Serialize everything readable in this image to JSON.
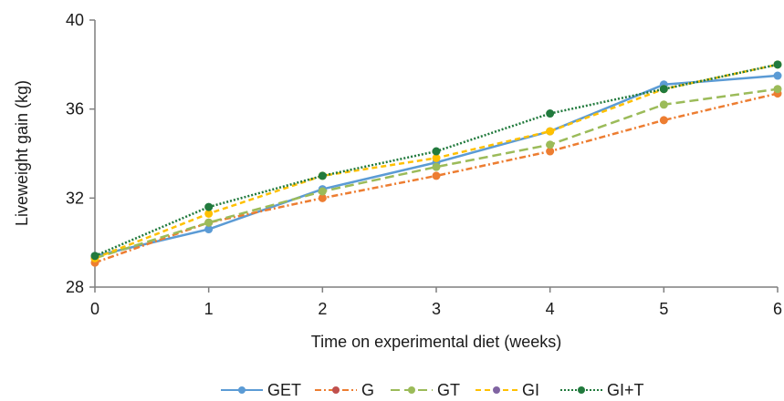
{
  "chart_data": {
    "type": "line",
    "xlabel": "Time on experimental diet (weeks)",
    "ylabel": "Liveweight gain (kg)",
    "x": [
      0,
      1,
      2,
      3,
      4,
      5,
      6
    ],
    "xlim": [
      0,
      6
    ],
    "ylim": [
      28,
      40
    ],
    "yticks": [
      28,
      32,
      36,
      40
    ],
    "grid": false,
    "legend_position": "bottom",
    "series": [
      {
        "name": "GET",
        "color": "#5b9bd5",
        "dash": "solid",
        "values": [
          29.4,
          30.6,
          32.4,
          33.6,
          35.0,
          37.1,
          37.5
        ]
      },
      {
        "name": "G",
        "color": "#ed7d31",
        "dash": "dash-dot",
        "marker_color": "#c0504d",
        "values": [
          29.1,
          30.9,
          32.0,
          33.0,
          34.1,
          35.5,
          36.7
        ]
      },
      {
        "name": "GT",
        "color": "#9bbb59",
        "dash": "long-dash",
        "values": [
          29.3,
          30.9,
          32.3,
          33.4,
          34.4,
          36.2,
          36.9
        ]
      },
      {
        "name": "GI",
        "color": "#ffc000",
        "dash": "dash",
        "marker_color": "#8064a2",
        "values": [
          29.3,
          31.3,
          33.0,
          33.8,
          35.0,
          36.9,
          38.0
        ]
      },
      {
        "name": "GI+T",
        "color": "#217a3d",
        "dash": "dotted",
        "values": [
          29.4,
          31.6,
          33.0,
          34.1,
          35.8,
          36.9,
          38.0
        ]
      }
    ]
  }
}
